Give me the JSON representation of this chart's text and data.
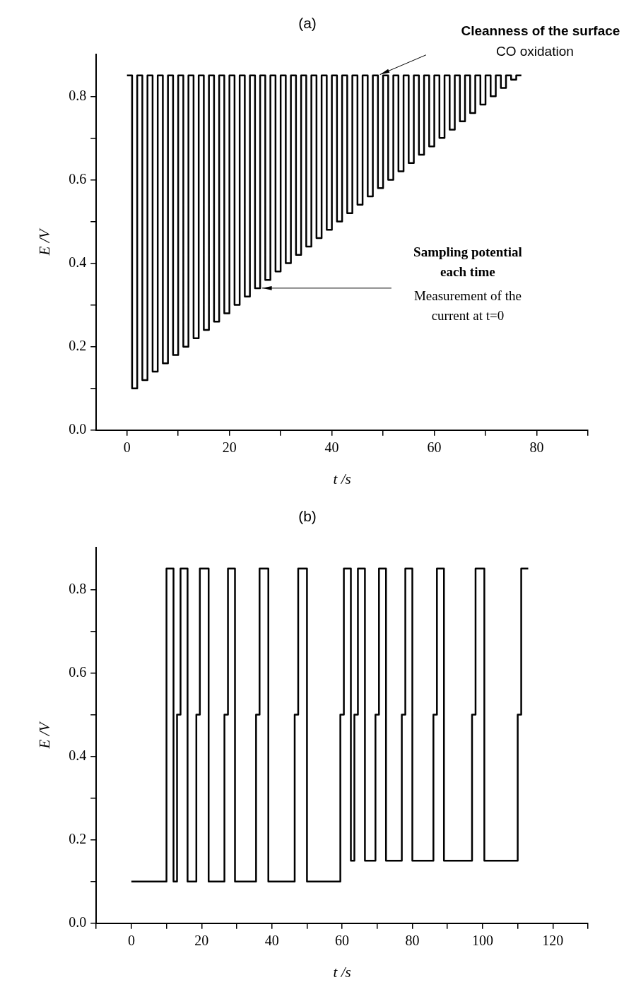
{
  "chart_data": [
    {
      "type": "step",
      "title": "(a)",
      "xlabel": "t /s",
      "ylabel": "E /V",
      "x": [
        0,
        1,
        2,
        3,
        4,
        5,
        6,
        7,
        8,
        9,
        10,
        11,
        12,
        13,
        14,
        15,
        16,
        17,
        18,
        19,
        20,
        21,
        22,
        23,
        24,
        25,
        26,
        27,
        28,
        29,
        30,
        31,
        32,
        33,
        34,
        35,
        36,
        37,
        38,
        39,
        40,
        41,
        42,
        43,
        44,
        45,
        46,
        47,
        48,
        49,
        50,
        51,
        52,
        53,
        54,
        55,
        56,
        57,
        58,
        59,
        60,
        61,
        62,
        63,
        64,
        65,
        66,
        67,
        68,
        69,
        70,
        71,
        72,
        73,
        74,
        75,
        76,
        77
      ],
      "values": [
        0.85,
        0.1,
        0.85,
        0.12,
        0.85,
        0.14,
        0.85,
        0.16,
        0.85,
        0.18,
        0.85,
        0.2,
        0.85,
        0.22,
        0.85,
        0.24,
        0.85,
        0.26,
        0.85,
        0.28,
        0.85,
        0.3,
        0.85,
        0.32,
        0.85,
        0.34,
        0.85,
        0.36,
        0.85,
        0.38,
        0.85,
        0.4,
        0.85,
        0.42,
        0.85,
        0.44,
        0.85,
        0.46,
        0.85,
        0.48,
        0.85,
        0.5,
        0.85,
        0.52,
        0.85,
        0.54,
        0.85,
        0.56,
        0.85,
        0.58,
        0.85,
        0.6,
        0.85,
        0.62,
        0.85,
        0.64,
        0.85,
        0.66,
        0.85,
        0.68,
        0.85,
        0.7,
        0.85,
        0.72,
        0.85,
        0.74,
        0.85,
        0.76,
        0.85,
        0.78,
        0.85,
        0.8,
        0.85,
        0.82,
        0.85,
        0.84,
        0.85,
        0.85
      ],
      "color": "#000000",
      "xlim": [
        -6,
        90
      ],
      "ylim": [
        0,
        0.9
      ],
      "xticks": [
        0,
        {
          "value": 10,
          "label": null
        },
        20,
        {
          "value": 30,
          "label": null
        },
        40,
        {
          "value": 50,
          "label": null
        },
        60,
        {
          "value": 70,
          "label": null
        },
        80,
        {
          "value": 90,
          "label": null
        }
      ],
      "yticks": [
        {
          "value": 0,
          "label": "0.0"
        },
        {
          "value": 0.1,
          "label": null
        },
        {
          "value": 0.2,
          "label": "0.2"
        },
        {
          "value": 0.3,
          "label": null
        },
        {
          "value": 0.4,
          "label": "0.4"
        },
        {
          "value": 0.5,
          "label": null
        },
        {
          "value": 0.6,
          "label": "0.6"
        },
        {
          "value": 0.7,
          "label": null
        },
        {
          "value": 0.8,
          "label": "0.8"
        }
      ],
      "annotations": [
        "Cleanness of the surface",
        "CO oxidation",
        "Sampling potential each time",
        "Measurement of the current at t=0"
      ]
    },
    {
      "type": "step",
      "title": "(b)",
      "xlabel": "t /s",
      "ylabel": "E /V",
      "x": [
        0,
        10,
        12,
        13,
        14,
        16,
        18.5,
        19.5,
        22,
        26.5,
        27.5,
        29.5,
        35.5,
        36.5,
        39,
        46.5,
        47.5,
        50,
        59.5,
        60.5,
        62.5,
        63.5,
        64.5,
        66.5,
        69.5,
        70.5,
        72.5,
        77,
        78,
        80,
        86,
        87,
        89,
        97,
        98,
        100.5,
        110,
        111,
        113
      ],
      "values": [
        0.1,
        0.85,
        0.1,
        0.5,
        0.85,
        0.1,
        0.5,
        0.85,
        0.1,
        0.5,
        0.85,
        0.1,
        0.5,
        0.85,
        0.1,
        0.5,
        0.85,
        0.1,
        0.5,
        0.85,
        0.15,
        0.5,
        0.85,
        0.15,
        0.5,
        0.85,
        0.15,
        0.5,
        0.85,
        0.15,
        0.5,
        0.85,
        0.15,
        0.5,
        0.85,
        0.15,
        0.5,
        0.85,
        0.85
      ],
      "color": "#000000",
      "xlim": [
        -10,
        130
      ],
      "ylim": [
        0,
        0.9
      ],
      "xticks": [
        {
          "value": -10,
          "label": null
        },
        0,
        {
          "value": 10,
          "label": null
        },
        20,
        {
          "value": 30,
          "label": null
        },
        40,
        {
          "value": 50,
          "label": null
        },
        60,
        {
          "value": 70,
          "label": null
        },
        80,
        {
          "value": 90,
          "label": null
        },
        100,
        {
          "value": 110,
          "label": null
        },
        120,
        {
          "value": 130,
          "label": null
        }
      ],
      "yticks": [
        {
          "value": 0,
          "label": "0.0"
        },
        {
          "value": 0.1,
          "label": null
        },
        {
          "value": 0.2,
          "label": "0.2"
        },
        {
          "value": 0.3,
          "label": null
        },
        {
          "value": 0.4,
          "label": "0.4"
        },
        {
          "value": 0.5,
          "label": null
        },
        {
          "value": 0.6,
          "label": "0.6"
        },
        {
          "value": 0.7,
          "label": null
        },
        {
          "value": 0.8,
          "label": "0.8"
        }
      ]
    }
  ]
}
